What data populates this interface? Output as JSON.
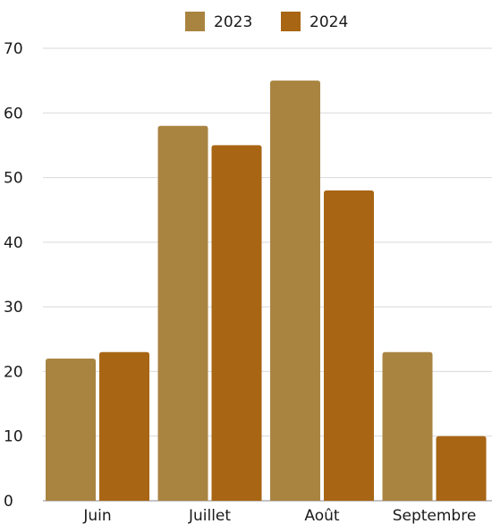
{
  "chart_data": {
    "type": "bar",
    "categories": [
      "Juin",
      "Juillet",
      "Août",
      "Septembre"
    ],
    "series": [
      {
        "name": "2023",
        "values": [
          22,
          58,
          65,
          23
        ],
        "color": "#A98441"
      },
      {
        "name": "2024",
        "values": [
          23,
          55,
          48,
          10
        ],
        "color": "#A86514"
      }
    ],
    "title": "",
    "xlabel": "",
    "ylabel": "",
    "ylim": [
      0,
      70
    ],
    "yticks": [
      0,
      10,
      20,
      30,
      40,
      50,
      60,
      70
    ],
    "grid": true,
    "legend": "top-center"
  }
}
